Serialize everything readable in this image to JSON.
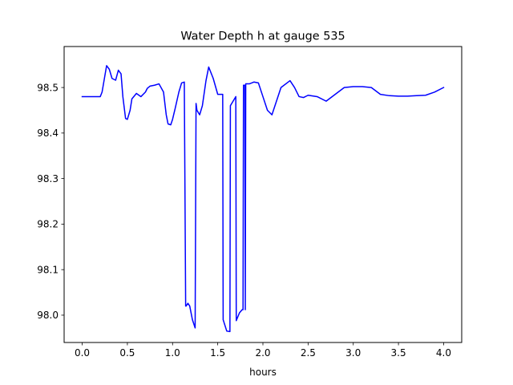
{
  "chart_data": {
    "type": "line",
    "title": "Water Depth h at gauge 535",
    "xlabel": "hours",
    "ylabel": "",
    "xlim": [
      -0.2,
      4.2
    ],
    "ylim": [
      97.94,
      98.59
    ],
    "xticks": [
      0.0,
      0.5,
      1.0,
      1.5,
      2.0,
      2.5,
      3.0,
      3.5,
      4.0
    ],
    "xtick_labels": [
      "0.0",
      "0.5",
      "1.0",
      "1.5",
      "2.0",
      "2.5",
      "3.0",
      "3.5",
      "4.0"
    ],
    "yticks": [
      98.0,
      98.1,
      98.2,
      98.3,
      98.4,
      98.5
    ],
    "ytick_labels": [
      "98.0",
      "98.1",
      "98.2",
      "98.3",
      "98.4",
      "98.5"
    ],
    "grid": false,
    "legend": "none",
    "series": [
      {
        "color": "#0000ff",
        "x": [
          0.0,
          0.1,
          0.2,
          0.22,
          0.27,
          0.3,
          0.33,
          0.37,
          0.4,
          0.43,
          0.45,
          0.48,
          0.5,
          0.53,
          0.55,
          0.6,
          0.65,
          0.7,
          0.72,
          0.75,
          0.8,
          0.85,
          0.9,
          0.93,
          0.95,
          0.98,
          1.0,
          1.03,
          1.07,
          1.1,
          1.13,
          1.145,
          1.15,
          1.17,
          1.19,
          1.22,
          1.25,
          1.26,
          1.27,
          1.3,
          1.33,
          1.37,
          1.4,
          1.45,
          1.5,
          1.555,
          1.56,
          1.6,
          1.635,
          1.64,
          1.67,
          1.7,
          1.705,
          1.74,
          1.77,
          1.78,
          1.785,
          1.8,
          1.805,
          1.81,
          1.85,
          1.9,
          1.95,
          2.0,
          2.05,
          2.1,
          2.15,
          2.2,
          2.3,
          2.35,
          2.4,
          2.45,
          2.5,
          2.6,
          2.7,
          2.8,
          2.9,
          3.0,
          3.1,
          3.2,
          3.3,
          3.4,
          3.5,
          3.6,
          3.7,
          3.8,
          3.9,
          4.0
        ],
        "y": [
          98.48,
          98.48,
          98.48,
          98.49,
          98.548,
          98.54,
          98.52,
          98.516,
          98.538,
          98.53,
          98.48,
          98.432,
          98.43,
          98.45,
          98.475,
          98.487,
          98.48,
          98.49,
          98.498,
          98.503,
          98.505,
          98.508,
          98.49,
          98.44,
          98.42,
          98.418,
          98.43,
          98.455,
          98.49,
          98.51,
          98.512,
          98.02,
          98.02,
          98.026,
          98.02,
          97.99,
          97.972,
          98.465,
          98.45,
          98.44,
          98.46,
          98.515,
          98.545,
          98.52,
          98.485,
          98.485,
          97.99,
          97.965,
          97.964,
          98.46,
          98.47,
          98.48,
          97.988,
          98.005,
          98.012,
          98.012,
          98.505,
          98.505,
          98.012,
          98.508,
          98.508,
          98.512,
          98.51,
          98.48,
          98.45,
          98.44,
          98.47,
          98.5,
          98.515,
          98.5,
          98.48,
          98.478,
          98.483,
          98.48,
          98.47,
          98.485,
          98.5,
          98.502,
          98.502,
          98.5,
          98.485,
          98.482,
          98.481,
          98.481,
          98.482,
          98.483,
          98.49,
          98.5
        ]
      }
    ]
  }
}
